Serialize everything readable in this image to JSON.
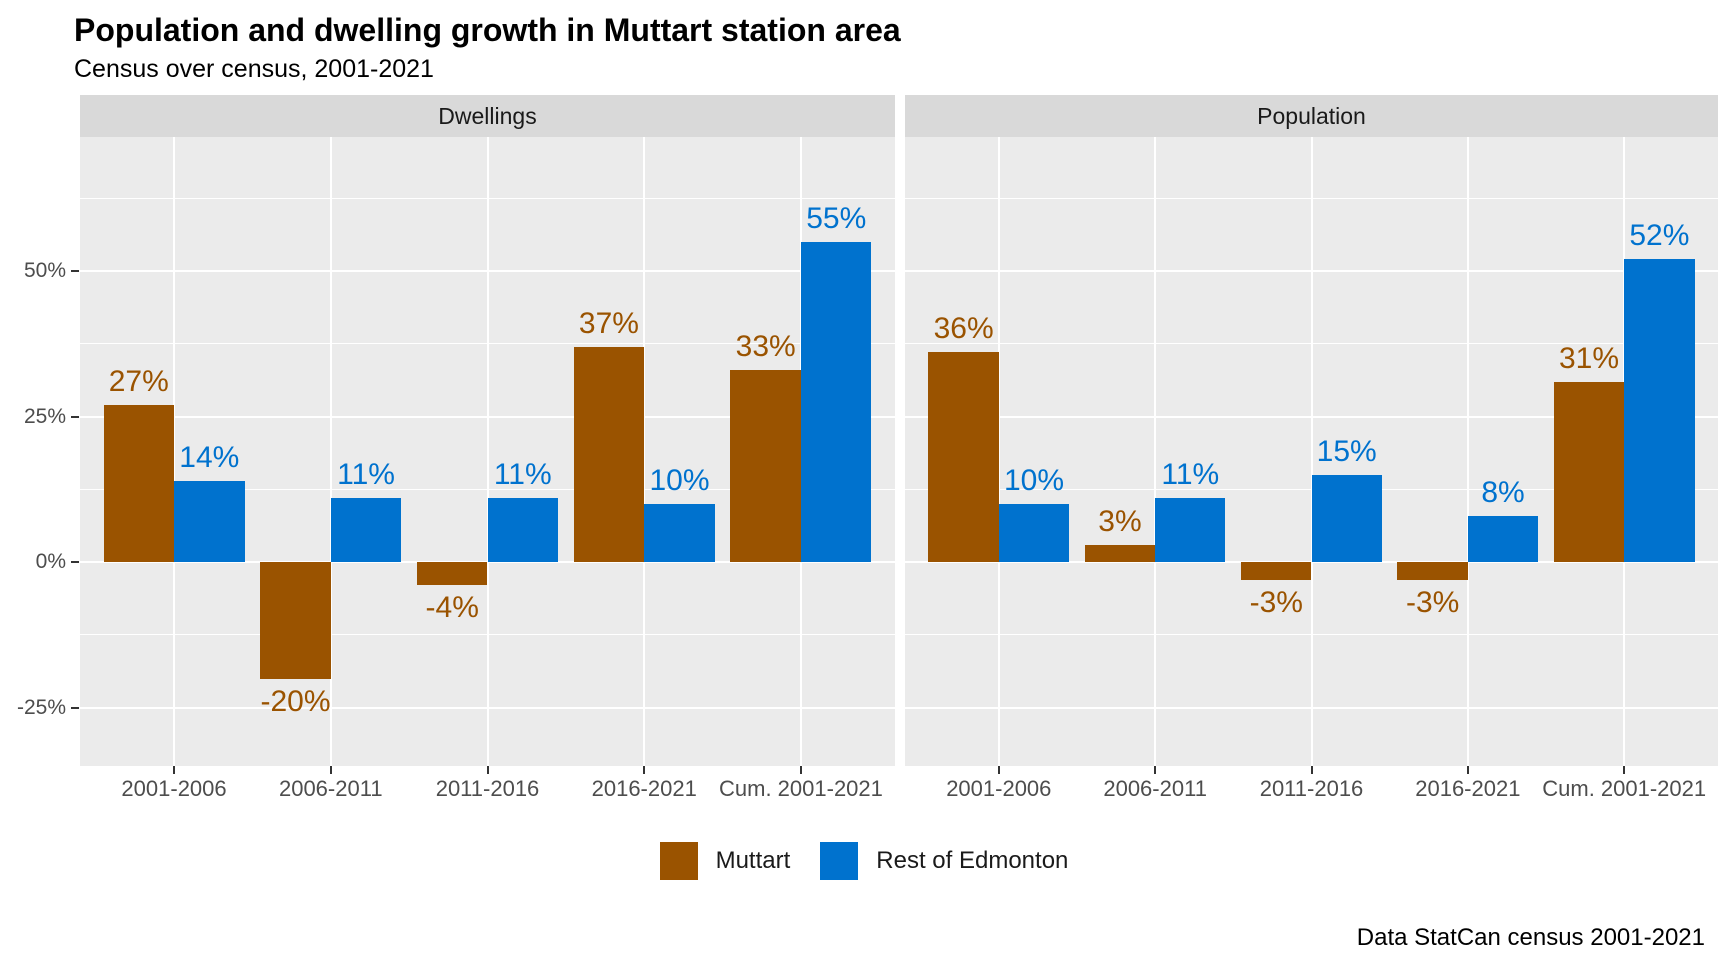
{
  "title": "Population and dwelling growth in Muttart station area",
  "subtitle": "Census over census, 2001-2021",
  "caption": "Data StatCan census 2001-2021",
  "legend": {
    "items": [
      {
        "label": "Muttart",
        "color": "#9A5300"
      },
      {
        "label": "Rest of Edmonton",
        "color": "#0072CE"
      }
    ]
  },
  "chart_data": {
    "type": "bar",
    "grouped": true,
    "title": "Population and dwelling growth in Muttart station area",
    "subtitle": "Census over census, 2001-2021",
    "caption": "Data StatCan census 2001-2021",
    "categories": [
      "2001-2006",
      "2006-2011",
      "2011-2016",
      "2016-2021",
      "Cum. 2001-2021"
    ],
    "facets": [
      {
        "label": "Dwellings",
        "series": [
          {
            "name": "Muttart",
            "values": [
              27,
              -20,
              -4,
              37,
              33
            ],
            "labels": [
              "27%",
              "-20%",
              "-4%",
              "37%",
              "33%"
            ]
          },
          {
            "name": "Rest of Edmonton",
            "values": [
              14,
              11,
              11,
              10,
              55
            ],
            "labels": [
              "14%",
              "11%",
              "11%",
              "10%",
              "55%"
            ]
          }
        ]
      },
      {
        "label": "Population",
        "series": [
          {
            "name": "Muttart",
            "values": [
              36,
              3,
              -3,
              -3,
              31
            ],
            "labels": [
              "36%",
              "3%",
              "-3%",
              "-3%",
              "31%"
            ]
          },
          {
            "name": "Rest of Edmonton",
            "values": [
              10,
              11,
              15,
              8,
              52
            ],
            "labels": [
              "10%",
              "11%",
              "15%",
              "8%",
              "52%"
            ]
          }
        ]
      }
    ],
    "xlabel": "",
    "ylabel": "",
    "ylim": [
      -35,
      73
    ],
    "y_ticks": [
      {
        "value": 50,
        "label": "50%"
      },
      {
        "value": 25,
        "label": "25%"
      },
      {
        "value": 0,
        "label": "0%"
      },
      {
        "value": -25,
        "label": "-25%"
      }
    ],
    "y_minor_gridlines": [
      62.5,
      37.5,
      12.5,
      -12.5
    ],
    "grid": true,
    "legend_position": "bottom",
    "colors": {
      "muttart": "#9A5300",
      "rest_of_edmonton": "#0072CE",
      "panel_background": "#EBEBEB",
      "strip_background": "#D9D9D9",
      "gridline": "#FFFFFF",
      "axis_text": "#4D4D4D"
    }
  }
}
